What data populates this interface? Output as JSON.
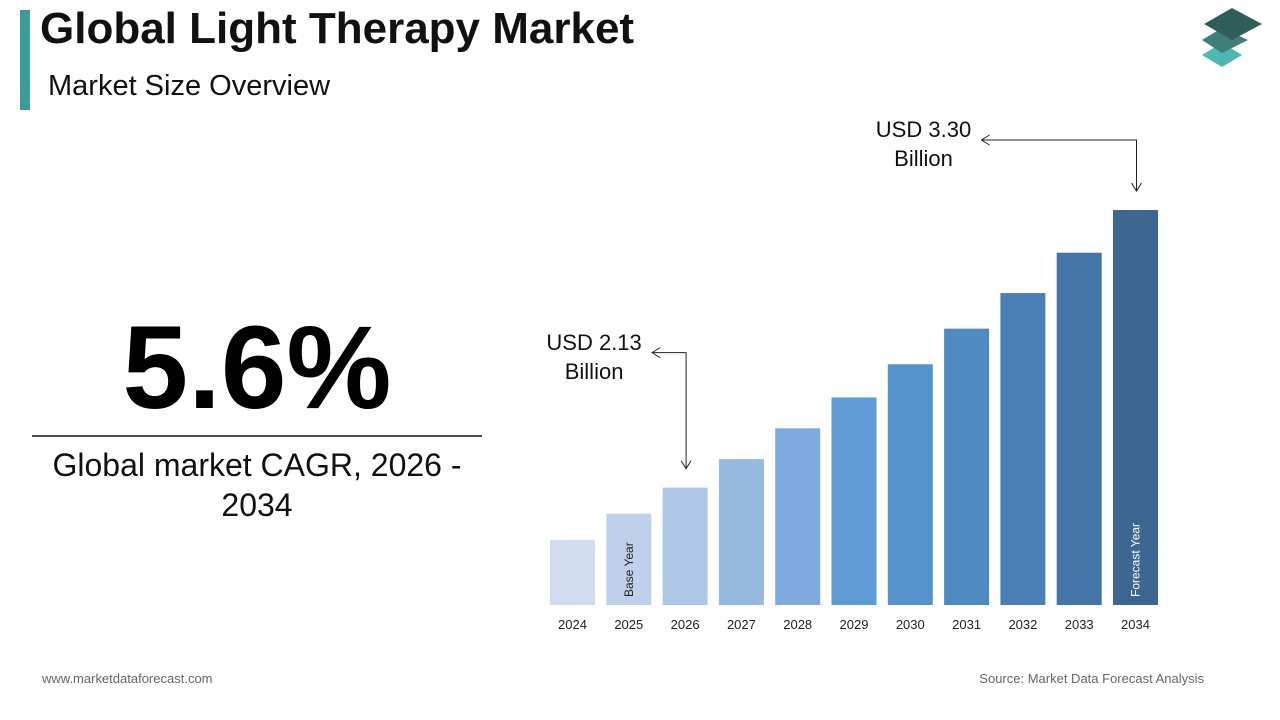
{
  "header": {
    "title": "Global Light Therapy Market",
    "subtitle": "Market Size Overview"
  },
  "cagr": {
    "value": "5.6%",
    "caption": "Global market CAGR, 2026 - 2034"
  },
  "chart_data": {
    "type": "bar",
    "categories": [
      "2024",
      "2025",
      "2026",
      "2027",
      "2028",
      "2029",
      "2030",
      "2031",
      "2032",
      "2033",
      "2034"
    ],
    "values": [
      1.91,
      2.02,
      2.13,
      2.25,
      2.38,
      2.51,
      2.65,
      2.8,
      2.95,
      3.12,
      3.3
    ],
    "value_labels": [
      null,
      null,
      "USD 2.13 Billion",
      null,
      null,
      null,
      null,
      null,
      null,
      null,
      "USD 3.30 Billion"
    ],
    "bar_labels": [
      null,
      "Base Year",
      null,
      null,
      null,
      null,
      null,
      null,
      null,
      null,
      "Forecast Year"
    ],
    "colors": [
      "#d0dcee",
      "#bfd0ea",
      "#adc6e5",
      "#97b8df",
      "#7eaadd",
      "#5f9ad4",
      "#5692cc",
      "#4e89c0",
      "#4a80b5",
      "#4475a6",
      "#3d6791"
    ]
  },
  "footer": {
    "website": "www.marketdataforecast.com",
    "source": "Source: Market Data Forecast Analysis"
  }
}
